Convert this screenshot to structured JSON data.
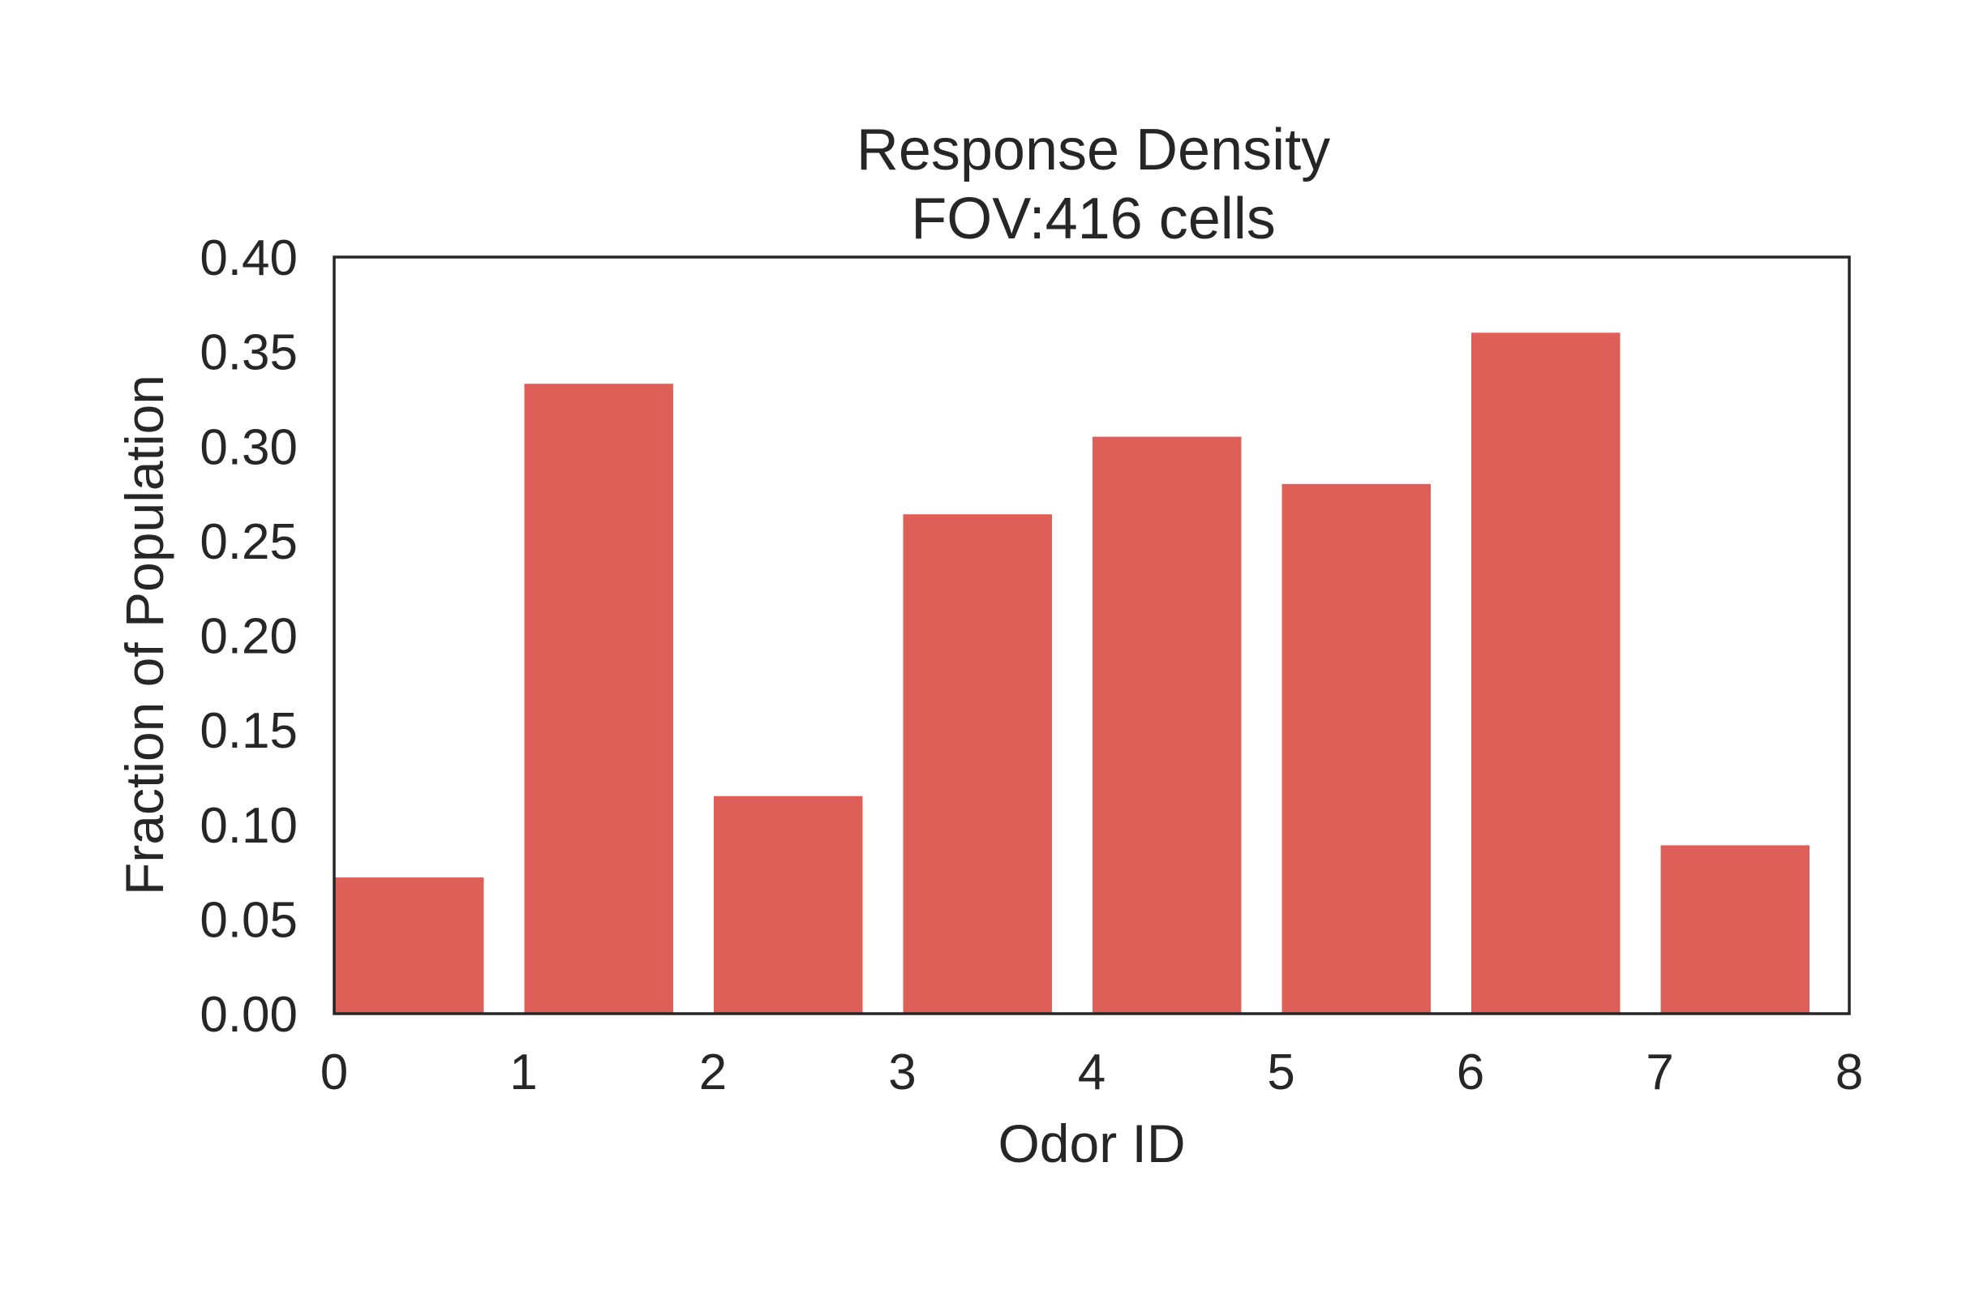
{
  "chart_data": {
    "type": "bar",
    "title": "Response Density",
    "subtitle": "FOV:416 cells",
    "xlabel": "Odor ID",
    "ylabel": "Fraction of Population",
    "x": [
      0,
      1,
      2,
      3,
      4,
      5,
      6,
      7
    ],
    "values": [
      0.072,
      0.333,
      0.115,
      0.264,
      0.305,
      0.28,
      0.36,
      0.089
    ],
    "xlim": [
      0,
      8
    ],
    "ylim": [
      0,
      0.4
    ],
    "xticks": [
      "0",
      "1",
      "2",
      "3",
      "4",
      "5",
      "6",
      "7",
      "8"
    ],
    "yticks": [
      "0.00",
      "0.05",
      "0.10",
      "0.15",
      "0.20",
      "0.25",
      "0.30",
      "0.35",
      "0.40"
    ],
    "bar_color": "#dd5f58",
    "grid": false,
    "legend": "none"
  }
}
